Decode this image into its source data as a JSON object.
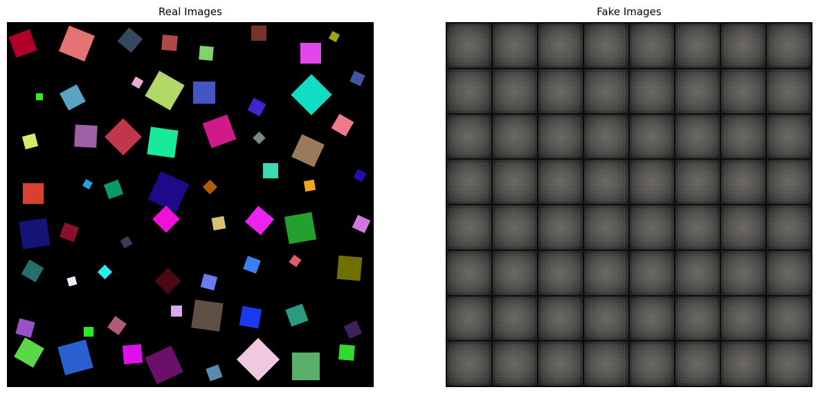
{
  "panels": {
    "left_title": "Real Images",
    "right_title": "Fake Images"
  },
  "real_shapes": [
    {
      "color": "#b0002a"
    },
    {
      "color": "#e57373"
    },
    {
      "color": "#34495e"
    },
    {
      "color": "#b0484a"
    },
    {
      "color": "#7a3329"
    },
    {
      "color": "#7ed36a"
    },
    {
      "color": "#9aa818"
    },
    {
      "color": "#e048ea"
    },
    {
      "color": "#4455a0"
    },
    {
      "color": "#33ee22"
    },
    {
      "color": "#5ba3c2"
    },
    {
      "color": "#f0a8d8"
    },
    {
      "color": "#b2d86a"
    },
    {
      "color": "#4456c4"
    },
    {
      "color": "#4422cc"
    },
    {
      "color": "#12dcc4"
    },
    {
      "color": "#f07a8a"
    },
    {
      "color": "#d6ea6a"
    },
    {
      "color": "#a060a6"
    },
    {
      "color": "#c0364a"
    },
    {
      "color": "#18ea9a"
    },
    {
      "color": "#d01a8a"
    },
    {
      "color": "#7a8a80"
    },
    {
      "color": "#9a7a5a"
    },
    {
      "color": "#d84030"
    },
    {
      "color": "#22a0e0"
    },
    {
      "color": "#0a9a6a"
    },
    {
      "color": "#1e0a88"
    },
    {
      "color": "#b05a0a"
    },
    {
      "color": "#40d8b0"
    },
    {
      "color": "#f0a818"
    },
    {
      "color": "#2a0ab0"
    },
    {
      "color": "#141476"
    },
    {
      "color": "#8a1030"
    },
    {
      "color": "#3a3a5a"
    },
    {
      "color": "#f010d8"
    },
    {
      "color": "#d8c070"
    },
    {
      "color": "#ee22ee"
    },
    {
      "color": "#24a030"
    },
    {
      "color": "#d078e0"
    },
    {
      "color": "#24706a"
    },
    {
      "color": "#eeeeff"
    },
    {
      "color": "#22f0ee"
    },
    {
      "color": "#4a0a14"
    },
    {
      "color": "#6a7af0"
    },
    {
      "color": "#3a80ee"
    },
    {
      "color": "#e05a6a"
    },
    {
      "color": "#707000"
    },
    {
      "color": "#9a50c8"
    },
    {
      "color": "#22ee22"
    },
    {
      "color": "#b05a7a"
    },
    {
      "color": "#d8aaee"
    },
    {
      "color": "#5e5044"
    },
    {
      "color": "#1a3af0"
    },
    {
      "color": "#2a9a80"
    },
    {
      "color": "#40205a"
    },
    {
      "color": "#5ad84a"
    },
    {
      "color": "#2a60d0"
    },
    {
      "color": "#e010ea"
    },
    {
      "color": "#6a106a"
    },
    {
      "color": "#5a8ab0"
    },
    {
      "color": "#f0c8e0"
    },
    {
      "color": "#5ab06a"
    },
    {
      "color": "#30d830"
    }
  ],
  "fake_grid": {
    "rows": 8,
    "cols": 8
  }
}
